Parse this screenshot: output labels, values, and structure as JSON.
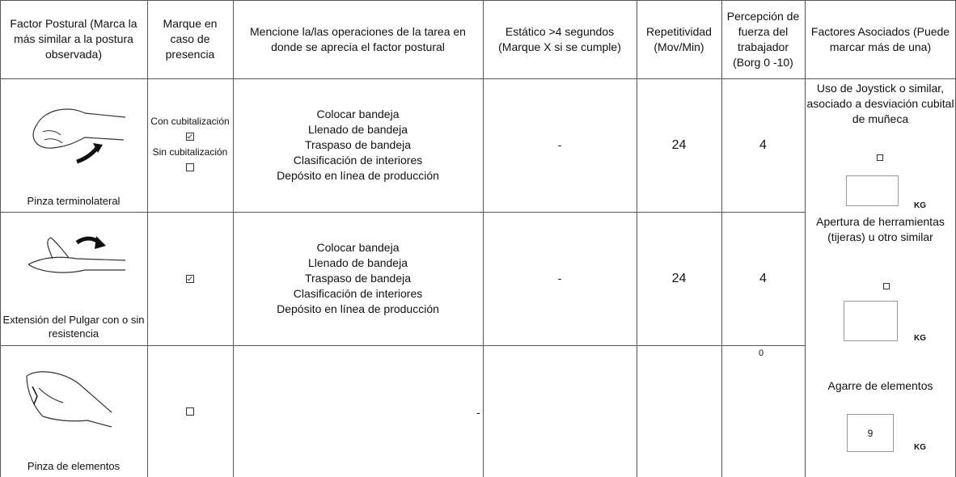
{
  "table": {
    "header": [
      "Factor Postural (Marca la más similar a la postura observada)",
      "Marque en caso de presencia",
      "Mencione la/las operaciones de la tarea en donde se aprecia el factor postural",
      "Estático >4 segundos (Marque X si se cumple)",
      "Repetitividad (Mov/Min)",
      "Percepción de fuerza del trabajador (Borg 0 -10)",
      "Factores Asociados (Puede marcar más de una)"
    ],
    "rows": [
      {
        "posture": "Pinza terminolateral",
        "presence": [
          {
            "label": "Con cubitalización",
            "checked": true
          },
          {
            "label": "Sin cubitalización",
            "checked": false
          }
        ],
        "operations": [
          "Colocar bandeja",
          "Llenado de bandeja",
          "Traspaso de bandeja",
          "Clasificación de interiores",
          "Depósito en línea de producción"
        ],
        "static": "-",
        "repetitiveness": 24,
        "force": 4
      },
      {
        "posture": "Extensión del Pulgar con o sin resistencia",
        "presence": [
          {
            "checked": true
          }
        ],
        "operations": [
          "Colocar bandeja",
          "Llenado de bandeja",
          "Traspaso de bandeja",
          "Clasificación de interiores",
          "Depósito en línea de producción"
        ],
        "static": "-",
        "repetitiveness": 24,
        "force": 4
      },
      {
        "posture": "Pinza de elementos",
        "presence": [
          {
            "checked": false
          }
        ],
        "operations": [],
        "static": "-",
        "force": 0
      }
    ],
    "factors": [
      {
        "label": "Uso de Joystick o similar, asociado a desviación cubital de muñeca",
        "checked": false,
        "unit": "KG"
      },
      {
        "label": "Apertura de herramientas (tijeras) u otro similar",
        "checked": false,
        "unit": "KG"
      },
      {
        "label": "Agarre de elementos",
        "kg": 9,
        "unit": "KG"
      }
    ]
  }
}
